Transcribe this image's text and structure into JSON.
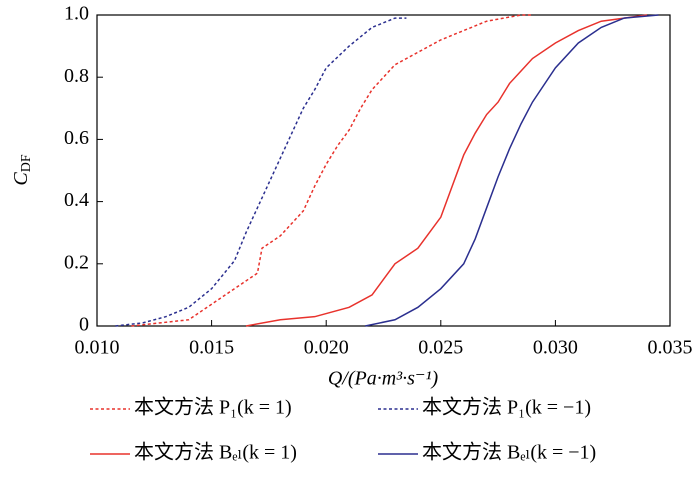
{
  "chart_data": {
    "type": "line",
    "xlabel": "Q/(Pa·m³·s⁻¹)",
    "ylabel": {
      "main": "C",
      "sub": "DF"
    },
    "xlim": [
      0.01,
      0.035
    ],
    "xticks": [
      {
        "value": 0.01,
        "label": "0.010"
      },
      {
        "value": 0.015,
        "label": "0.015"
      },
      {
        "value": 0.02,
        "label": "0.020"
      },
      {
        "value": 0.025,
        "label": "0.025"
      },
      {
        "value": 0.03,
        "label": "0.030"
      },
      {
        "value": 0.035,
        "label": "0.035"
      }
    ],
    "ylim": [
      0,
      1
    ],
    "yticks": [
      0,
      0.2,
      0.4,
      0.6,
      0.8,
      {
        "value": 1,
        "label": "1.0"
      }
    ],
    "series": [
      {
        "name": "本文方法 P₁(k = 1)",
        "color": "#e8322c",
        "linestyle": "dotted",
        "x": [
          0.0115,
          0.014,
          0.015,
          0.016,
          0.017,
          0.0172,
          0.018,
          0.019,
          0.0195,
          0.02,
          0.0205,
          0.021,
          0.0215,
          0.022,
          0.0225,
          0.023,
          0.024,
          0.025,
          0.026,
          0.027,
          0.0285,
          0.029
        ],
        "values": [
          0,
          0.02,
          0.07,
          0.12,
          0.17,
          0.25,
          0.29,
          0.37,
          0.45,
          0.52,
          0.58,
          0.63,
          0.7,
          0.76,
          0.8,
          0.84,
          0.88,
          0.92,
          0.95,
          0.98,
          1.0,
          1.0
        ]
      },
      {
        "name": "本文方法 P₁(k = −1)",
        "color": "#2b2f8f",
        "linestyle": "dotted",
        "x": [
          0.0108,
          0.012,
          0.013,
          0.014,
          0.015,
          0.016,
          0.0165,
          0.017,
          0.0175,
          0.018,
          0.0185,
          0.019,
          0.0195,
          0.02,
          0.021,
          0.022,
          0.023,
          0.0235
        ],
        "values": [
          0,
          0.01,
          0.03,
          0.06,
          0.12,
          0.21,
          0.3,
          0.38,
          0.46,
          0.54,
          0.62,
          0.7,
          0.76,
          0.83,
          0.9,
          0.96,
          0.99,
          0.99
        ]
      },
      {
        "name": "本文方法 Bₑₗ(k = 1)",
        "color": "#e8322c",
        "linestyle": "solid",
        "x": [
          0.0165,
          0.018,
          0.0195,
          0.02,
          0.021,
          0.022,
          0.0225,
          0.023,
          0.024,
          0.0245,
          0.025,
          0.0255,
          0.026,
          0.0265,
          0.027,
          0.0275,
          0.028,
          0.0285,
          0.029,
          0.03,
          0.031,
          0.032,
          0.033,
          0.034
        ],
        "values": [
          0,
          0.02,
          0.03,
          0.04,
          0.06,
          0.1,
          0.15,
          0.2,
          0.25,
          0.3,
          0.35,
          0.45,
          0.55,
          0.62,
          0.68,
          0.72,
          0.78,
          0.82,
          0.86,
          0.91,
          0.95,
          0.98,
          0.99,
          1.0
        ]
      },
      {
        "name": "本文方法 Bₑₗ(k = −1)",
        "color": "#2b2f8f",
        "linestyle": "solid",
        "x": [
          0.0217,
          0.023,
          0.024,
          0.025,
          0.026,
          0.0265,
          0.027,
          0.0275,
          0.028,
          0.0285,
          0.029,
          0.03,
          0.031,
          0.032,
          0.033,
          0.0345
        ],
        "values": [
          0,
          0.02,
          0.06,
          0.12,
          0.2,
          0.28,
          0.38,
          0.48,
          0.57,
          0.65,
          0.72,
          0.83,
          0.91,
          0.96,
          0.99,
          1.0
        ]
      }
    ]
  }
}
